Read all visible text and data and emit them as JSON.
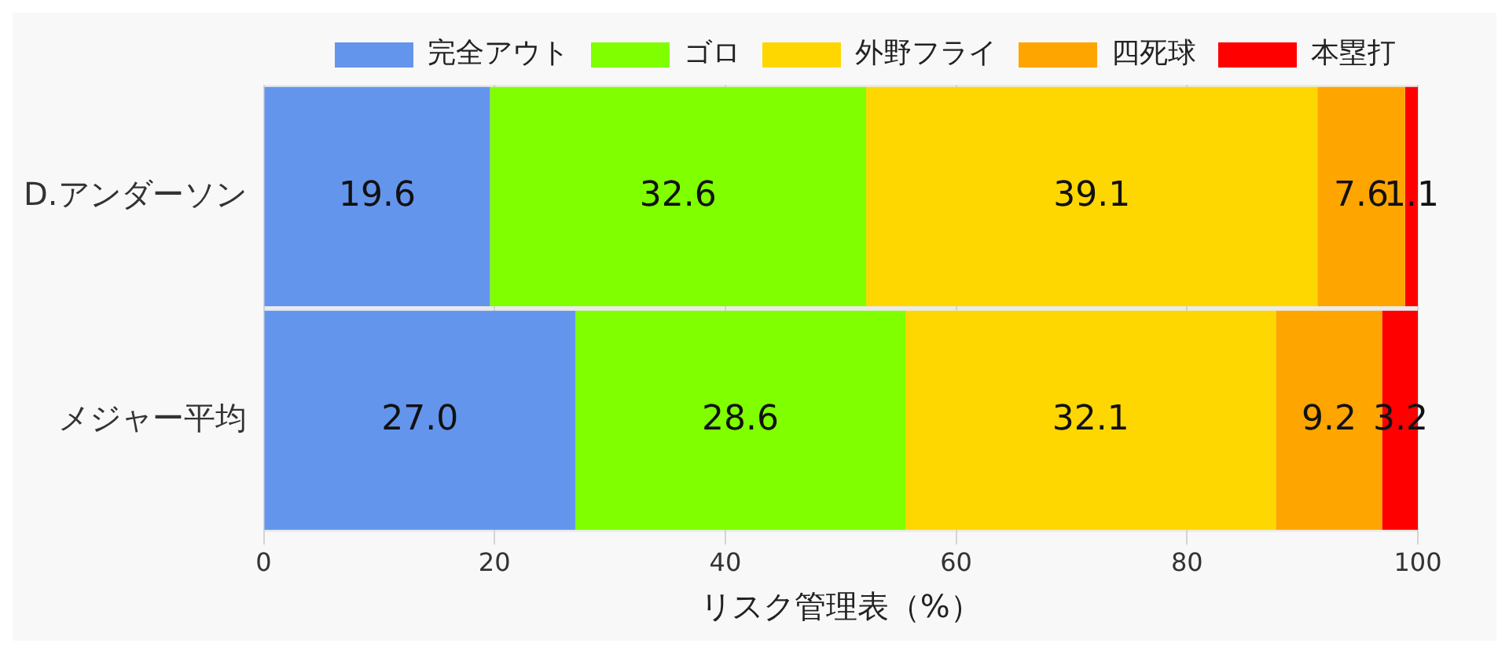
{
  "chart_data": {
    "type": "bar",
    "orientation": "horizontal",
    "stacked": true,
    "xlabel": "リスク管理表（%）",
    "categories": [
      "D.アンダーソン",
      "メジャー平均"
    ],
    "series": [
      {
        "name": "完全アウト",
        "color": "#6495ed",
        "values": [
          19.6,
          27.0
        ],
        "value_labels": [
          "19.6",
          "27.0"
        ]
      },
      {
        "name": "ゴロ",
        "color": "#7fff00",
        "values": [
          32.6,
          28.6
        ],
        "value_labels": [
          "32.6",
          "28.6"
        ]
      },
      {
        "name": "外野フライ",
        "color": "#ffd700",
        "values": [
          39.1,
          32.1
        ],
        "value_labels": [
          "39.1",
          "32.1"
        ]
      },
      {
        "name": "四死球",
        "color": "#ffa500",
        "values": [
          7.6,
          9.2
        ],
        "value_labels": [
          "7.6",
          "9.2"
        ]
      },
      {
        "name": "本塁打",
        "color": "#ff0000",
        "values": [
          1.1,
          3.2
        ],
        "value_labels": [
          "1.1",
          "3.2"
        ]
      }
    ],
    "xlim": [
      0,
      100
    ],
    "xticks": [
      0,
      20,
      40,
      60,
      80,
      100
    ],
    "grid": "x",
    "legend": "top"
  }
}
